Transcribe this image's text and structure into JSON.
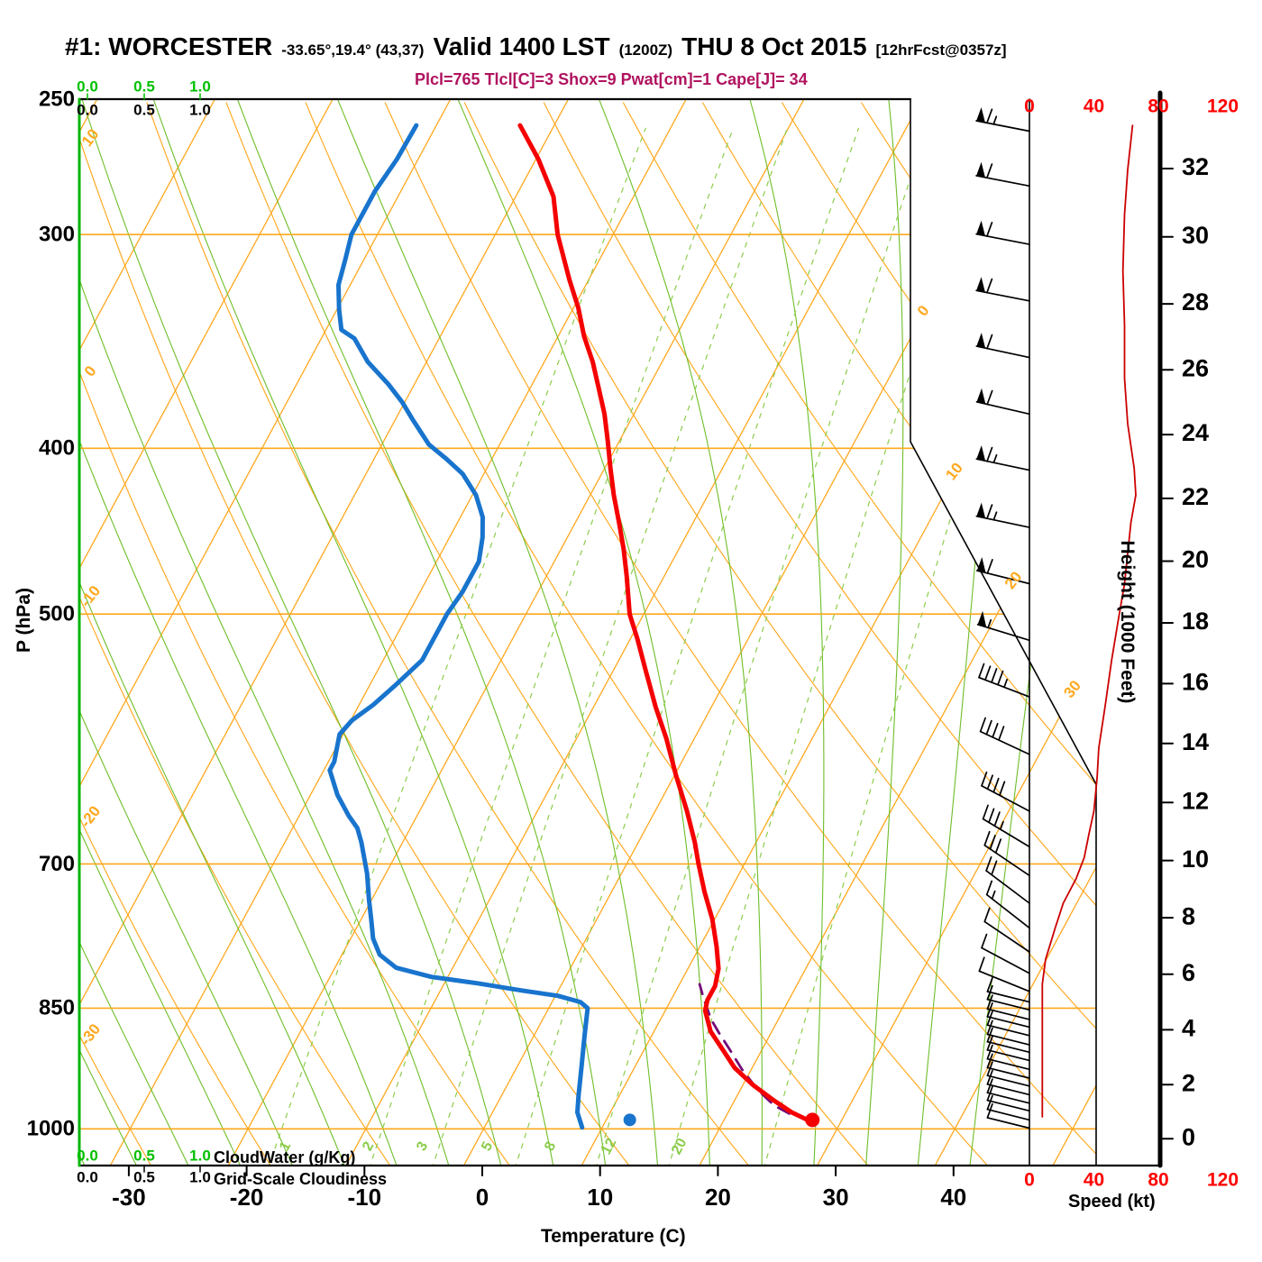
{
  "header": {
    "station": "#1: WORCESTER",
    "coords": "-33.65°,19.4° (43,37)",
    "valid": "Valid 1400 LST",
    "valid_z": "(1200Z)",
    "date": "THU 8 Oct 2015",
    "fcst_tag": "[12hrFcst@0357z]",
    "params_line": "Plcl=765 Tlcl[C]=3 Shox=9 Pwat[cm]=1 Cape[J]= 34"
  },
  "colors": {
    "temperature_curve": "#F50000",
    "dewpoint_curve": "#1874CD",
    "parcel_curve": "#720B78",
    "grid_orange": "#FFA81E",
    "moist_adiabat_green": "#6EBE28",
    "mixing_ratio_green": "#8CCD4B",
    "frame_green": "#00B400",
    "cloudwater_green": "#00C000",
    "speed_curve_red": "#CC0000",
    "speed_label_red": "#FF0000",
    "params_magenta": "#B0135F",
    "black": "#000000"
  },
  "chart_data": {
    "type": "skew-t-log-p-sounding",
    "pressure_axis": {
      "label": "P (hPa)",
      "ticks": [
        250,
        300,
        400,
        500,
        700,
        850,
        1000
      ],
      "range": [
        250,
        1050
      ],
      "scale": "log"
    },
    "temperature_axis": {
      "label": "Temperature (C)",
      "ticks": [
        -30,
        -20,
        -10,
        0,
        10,
        20,
        30,
        40
      ],
      "unit": "C"
    },
    "height_axis": {
      "label": "Height (1000 Feet)",
      "ticks": [
        0,
        2,
        4,
        6,
        8,
        10,
        12,
        14,
        16,
        18,
        20,
        22,
        24,
        26,
        28,
        30,
        32
      ]
    },
    "speed_axis": {
      "label": "Speed (kt)",
      "ticks": [
        0,
        40,
        80,
        120
      ]
    },
    "cloud_scale": {
      "values": [
        "0.0",
        "0.5",
        "1.0"
      ],
      "cloudwater_label": "CloudWater (g/Kg)",
      "gridscale_label": "Grid-Scale Cloudiness"
    },
    "isotherm_edge_labels": [
      0,
      10,
      20,
      30
    ],
    "dry_adiabat_edge_labels": [
      10,
      0,
      -10,
      -20,
      -30
    ],
    "mixing_ratio_values": [
      1,
      2,
      3,
      5,
      8,
      12,
      20
    ],
    "temperature_profile": [
      [
        259,
        -42.9
      ],
      [
        271,
        -39.8
      ],
      [
        285,
        -36.8
      ],
      [
        300,
        -34.7
      ],
      [
        319,
        -31.6
      ],
      [
        331,
        -29.6
      ],
      [
        344,
        -27.8
      ],
      [
        356,
        -25.9
      ],
      [
        368,
        -24.3
      ],
      [
        382,
        -22.5
      ],
      [
        396,
        -21.0
      ],
      [
        411,
        -19.5
      ],
      [
        426,
        -18.0
      ],
      [
        442,
        -16.3
      ],
      [
        458,
        -14.7
      ],
      [
        475,
        -13.2
      ],
      [
        500,
        -11.2
      ],
      [
        517,
        -9.4
      ],
      [
        540,
        -7.2
      ],
      [
        567,
        -4.7
      ],
      [
        591,
        -2.4
      ],
      [
        621,
        0.1
      ],
      [
        652,
        2.7
      ],
      [
        680,
        4.8
      ],
      [
        700,
        6.1
      ],
      [
        727,
        7.9
      ],
      [
        754,
        9.8
      ],
      [
        782,
        11.4
      ],
      [
        806,
        12.6
      ],
      [
        825,
        13.1
      ],
      [
        841,
        13.1
      ],
      [
        853,
        13.4
      ],
      [
        877,
        14.8
      ],
      [
        898,
        16.6
      ],
      [
        921,
        18.5
      ],
      [
        943,
        20.9
      ],
      [
        963,
        23.4
      ],
      [
        978,
        25.4
      ],
      [
        987,
        26.9
      ]
    ],
    "dewpoint_profile": [
      [
        259,
        -51.7
      ],
      [
        271,
        -51.8
      ],
      [
        283,
        -52.2
      ],
      [
        300,
        -52.2
      ],
      [
        310,
        -51.6
      ],
      [
        321,
        -51.0
      ],
      [
        332,
        -49.8
      ],
      [
        341,
        -48.7
      ],
      [
        345,
        -47.2
      ],
      [
        356,
        -45.0
      ],
      [
        367,
        -42.2
      ],
      [
        376,
        -40.2
      ],
      [
        385,
        -38.5
      ],
      [
        398,
        -36.0
      ],
      [
        406,
        -33.8
      ],
      [
        414,
        -31.8
      ],
      [
        426,
        -29.7
      ],
      [
        439,
        -28.1
      ],
      [
        451,
        -27.2
      ],
      [
        466,
        -26.4
      ],
      [
        485,
        -26.4
      ],
      [
        500,
        -26.7
      ],
      [
        532,
        -26.7
      ],
      [
        550,
        -27.8
      ],
      [
        565,
        -28.8
      ],
      [
        577,
        -29.9
      ],
      [
        588,
        -30.3
      ],
      [
        610,
        -29.5
      ],
      [
        617,
        -29.5
      ],
      [
        638,
        -27.7
      ],
      [
        656,
        -25.8
      ],
      [
        667,
        -24.5
      ],
      [
        680,
        -23.5
      ],
      [
        709,
        -21.6
      ],
      [
        735,
        -20.2
      ],
      [
        755,
        -19.1
      ],
      [
        774,
        -18.1
      ],
      [
        791,
        -16.8
      ],
      [
        805,
        -14.8
      ],
      [
        815,
        -11.4
      ],
      [
        822,
        -7.2
      ],
      [
        830,
        -3.1
      ],
      [
        836,
        0.2
      ],
      [
        843,
        2.4
      ],
      [
        850,
        3.3
      ],
      [
        882,
        4.3
      ],
      [
        921,
        5.5
      ],
      [
        955,
        6.5
      ],
      [
        978,
        7.2
      ],
      [
        998,
        8.3
      ]
    ],
    "parcel_path": [
      [
        988,
        27.3
      ],
      [
        984,
        26.3
      ],
      [
        980,
        25.3
      ],
      [
        969,
        23.6
      ],
      [
        949,
        21.5
      ],
      [
        923,
        19.2
      ],
      [
        898,
        17.2
      ],
      [
        879,
        15.6
      ],
      [
        863,
        14.3
      ],
      [
        839,
        12.7
      ],
      [
        823,
        11.7
      ]
    ],
    "surface": {
      "pressure_hpa": 988,
      "temp_c": 27.5,
      "dewpoint_c": 12.0
    },
    "wind_speed_profile": [
      [
        259,
        64
      ],
      [
        275,
        61
      ],
      [
        292,
        59
      ],
      [
        315,
        58
      ],
      [
        339,
        59
      ],
      [
        364,
        59
      ],
      [
        387,
        61
      ],
      [
        411,
        65
      ],
      [
        426,
        66
      ],
      [
        442,
        63
      ],
      [
        480,
        59
      ],
      [
        505,
        55
      ],
      [
        532,
        51
      ],
      [
        566,
        47
      ],
      [
        599,
        43
      ],
      [
        623,
        42
      ],
      [
        652,
        40
      ],
      [
        672,
        37
      ],
      [
        694,
        34
      ],
      [
        714,
        29
      ],
      [
        738,
        21
      ],
      [
        763,
        16
      ],
      [
        774,
        14
      ],
      [
        796,
        10
      ],
      [
        823,
        8
      ],
      [
        844,
        8
      ],
      [
        880,
        8
      ],
      [
        920,
        8
      ],
      [
        958,
        8
      ],
      [
        984,
        8
      ]
    ],
    "wind_barbs": [
      [
        261,
        65,
        11
      ],
      [
        281,
        60,
        11
      ],
      [
        304,
        60,
        11
      ],
      [
        328,
        60,
        11
      ],
      [
        354,
        60,
        12
      ],
      [
        382,
        60,
        13
      ],
      [
        412,
        65,
        12
      ],
      [
        445,
        65,
        12
      ],
      [
        480,
        60,
        14
      ],
      [
        518,
        55,
        17
      ],
      [
        559,
        45,
        21
      ],
      [
        604,
        40,
        25
      ],
      [
        652,
        40,
        28
      ],
      [
        684,
        35,
        31
      ],
      [
        711,
        30,
        34
      ],
      [
        738,
        20,
        37
      ],
      [
        763,
        15,
        38
      ],
      [
        788,
        10,
        34
      ],
      [
        811,
        10,
        28
      ],
      [
        831,
        10,
        22
      ],
      [
        843,
        10,
        14
      ],
      [
        852,
        10,
        14
      ],
      [
        863,
        10,
        14
      ],
      [
        872,
        10,
        14
      ],
      [
        882,
        10,
        14
      ],
      [
        893,
        10,
        14
      ],
      [
        902,
        10,
        14
      ],
      [
        912,
        10,
        14
      ],
      [
        923,
        10,
        14
      ],
      [
        934,
        10,
        14
      ],
      [
        944,
        10,
        14
      ],
      [
        955,
        10,
        14
      ],
      [
        966,
        10,
        14
      ],
      [
        976,
        10,
        14
      ],
      [
        988,
        10,
        14
      ],
      [
        999,
        10,
        14
      ]
    ],
    "parameters": {
      "Plcl": 765,
      "Tlcl_C": 3,
      "Shox": 9,
      "Pwat_cm": 1,
      "Cape_J": 34
    }
  }
}
